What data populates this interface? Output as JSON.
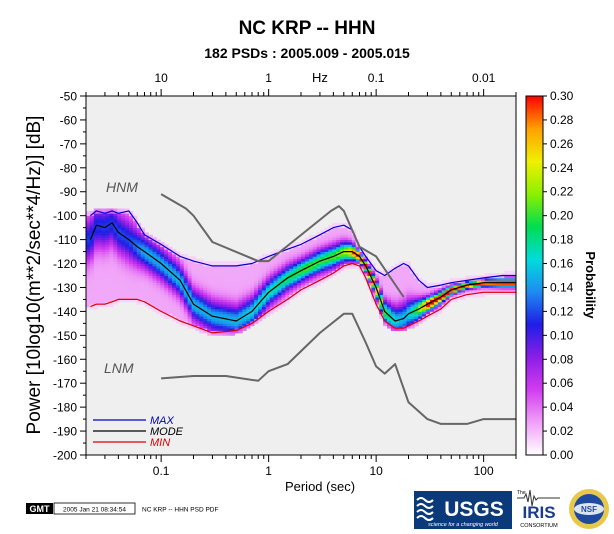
{
  "chart_data": {
    "type": "heatmap",
    "title": "NC KRP -- HHN",
    "subtitle": "182 PSDs : 2005.009 - 2005.015",
    "xlabel": "Period (sec)",
    "x_top_label": "Hz",
    "ylabel": "Power [10log10(m**2/sec**4/Hz)] [dB]",
    "x_scale": "log",
    "xlim": [
      0.02,
      200
    ],
    "ylim": [
      -200,
      -50
    ],
    "x_ticks_bottom": [
      0.1,
      1,
      10,
      100
    ],
    "x_tick_labels_bottom": [
      "0.1",
      "1",
      "10",
      "100"
    ],
    "x_ticks_top_period": [
      0.1,
      1,
      10,
      100
    ],
    "x_tick_labels_top": [
      "10",
      "1",
      "0.1",
      "0.01"
    ],
    "y_ticks": [
      -50,
      -60,
      -70,
      -80,
      -90,
      -100,
      -110,
      -120,
      -130,
      -140,
      -150,
      -160,
      -170,
      -180,
      -190,
      -200
    ],
    "colorbar": {
      "label": "Probability",
      "range": [
        0,
        0.3
      ],
      "ticks": [
        "0.00",
        "0.02",
        "0.04",
        "0.06",
        "0.08",
        "0.10",
        "0.12",
        "0.14",
        "0.16",
        "0.18",
        "0.20",
        "0.22",
        "0.24",
        "0.26",
        "0.28",
        "0.30"
      ],
      "colors": [
        "#ffffff",
        "#f0a0f8",
        "#d23cf0",
        "#8a1ee6",
        "#1e1ee6",
        "#1e8cf0",
        "#00dcdc",
        "#00dc50",
        "#8cf000",
        "#f0f000",
        "#ffa000",
        "#ff0000"
      ]
    },
    "annotations": [
      "HNM",
      "LNM"
    ],
    "series": [
      {
        "name": "MAX",
        "color": "#0000cc",
        "x": [
          0.022,
          0.025,
          0.03,
          0.035,
          0.04,
          0.05,
          0.06,
          0.07,
          0.1,
          0.15,
          0.2,
          0.3,
          0.5,
          0.7,
          1,
          1.5,
          2,
          3,
          4,
          5,
          6,
          7,
          8,
          10,
          12,
          15,
          18,
          20,
          25,
          30,
          40,
          50,
          70,
          100,
          150,
          200
        ],
        "y": [
          -100,
          -98,
          -99,
          -98,
          -99,
          -98,
          -103,
          -108,
          -112,
          -117,
          -119,
          -121,
          -121,
          -120,
          -117,
          -114,
          -112,
          -108,
          -105,
          -104,
          -106,
          -113,
          -117,
          -123,
          -125,
          -122,
          -120,
          -121,
          -127,
          -130,
          -129,
          -128,
          -127,
          -126,
          -125,
          -125
        ]
      },
      {
        "name": "MODE",
        "color": "#000000",
        "x": [
          0.022,
          0.025,
          0.03,
          0.035,
          0.04,
          0.05,
          0.06,
          0.07,
          0.1,
          0.15,
          0.2,
          0.3,
          0.5,
          0.7,
          1,
          1.5,
          2,
          3,
          4,
          5,
          6,
          7,
          8,
          10,
          12,
          15,
          18,
          20,
          25,
          30,
          40,
          50,
          70,
          100,
          150,
          200
        ],
        "y": [
          -110,
          -104,
          -105,
          -103,
          -107,
          -110,
          -113,
          -115,
          -120,
          -127,
          -137,
          -142,
          -144,
          -140,
          -132,
          -126,
          -123,
          -119,
          -117,
          -115,
          -115,
          -117,
          -121,
          -130,
          -140,
          -144,
          -143,
          -141,
          -139,
          -137,
          -134,
          -131,
          -129,
          -128,
          -128,
          -128
        ]
      },
      {
        "name": "MIN",
        "color": "#dd0000",
        "x": [
          0.022,
          0.025,
          0.03,
          0.035,
          0.04,
          0.05,
          0.06,
          0.07,
          0.1,
          0.15,
          0.2,
          0.3,
          0.5,
          0.7,
          1,
          1.5,
          2,
          3,
          4,
          5,
          6,
          7,
          8,
          10,
          12,
          15,
          18,
          20,
          25,
          30,
          40,
          50,
          70,
          100,
          150,
          200
        ],
        "y": [
          -138,
          -137,
          -137,
          -136,
          -135,
          -135,
          -135,
          -136,
          -140,
          -144,
          -146,
          -149,
          -148,
          -145,
          -140,
          -135,
          -131,
          -127,
          -124,
          -121,
          -120,
          -121,
          -126,
          -137,
          -144,
          -147,
          -147,
          -146,
          -144,
          -142,
          -139,
          -135,
          -133,
          -132,
          -132,
          -132
        ]
      },
      {
        "x": [
          0.1,
          0.17,
          0.2,
          0.3,
          0.8,
          1,
          3.8,
          4.5,
          5,
          7,
          10,
          18
        ],
        "y": [
          -91,
          -97,
          -100,
          -111,
          -119,
          -119,
          -98,
          -96,
          -98,
          -113,
          -117,
          -134
        ]
      },
      {
        "x": [
          0.1,
          0.2,
          0.4,
          0.8,
          1,
          1.5,
          3,
          5,
          6,
          8,
          10,
          12,
          15,
          20,
          30,
          40,
          50,
          70,
          100,
          200
        ],
        "y": [
          -168,
          -167,
          -167,
          -169,
          -165,
          -162,
          -149,
          -141,
          -141,
          -153,
          -163,
          -166,
          -162,
          -178,
          -185,
          -187,
          -187,
          -187,
          -185,
          -185
        ]
      }
    ]
  },
  "footer": {
    "gmt_badge": "GMT",
    "timestamp": "2005 Jan 21 08:34:54",
    "caption": "NC KRP -- HHN PSD PDF"
  },
  "logos": {
    "usgs": "USGS",
    "usgs_tagline": "science for a changing world",
    "iris_prefix": "The",
    "iris": "IRIS",
    "iris_sub": "CONSORTIUM",
    "nsf": "NSF"
  }
}
